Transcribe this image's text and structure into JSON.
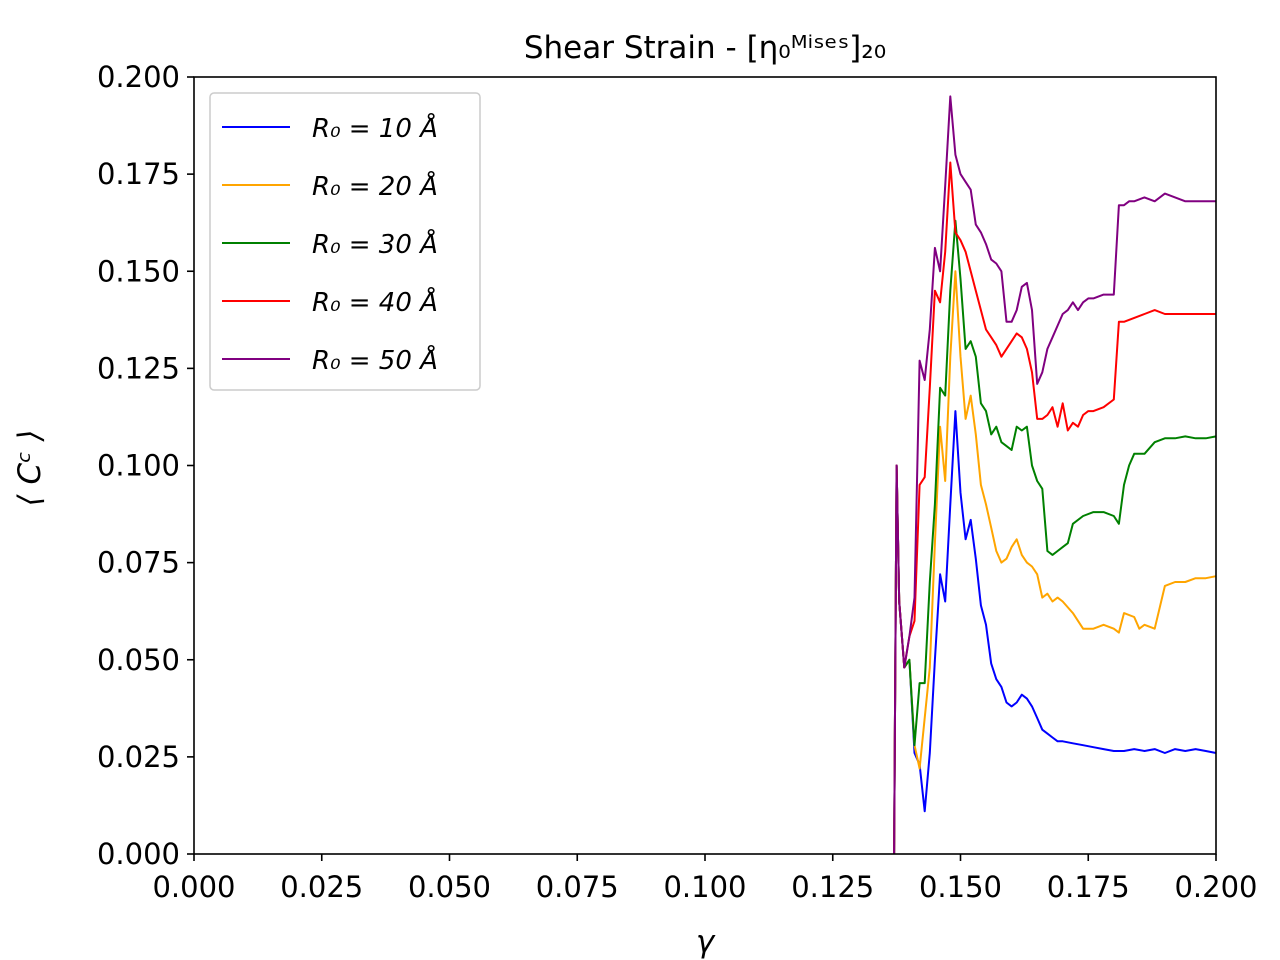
{
  "chart_data": {
    "type": "line",
    "title": "Shear Strain - [η₀ᴹⁱˢᵉˢ]₂₀",
    "xlabel": "γ",
    "ylabel": "⟨ Cᶜ ⟩",
    "xlim": [
      0.0,
      0.2
    ],
    "ylim": [
      0.0,
      0.2
    ],
    "xticks": [
      "0.000",
      "0.025",
      "0.050",
      "0.075",
      "0.100",
      "0.125",
      "0.150",
      "0.175",
      "0.200"
    ],
    "yticks": [
      "0.000",
      "0.025",
      "0.050",
      "0.075",
      "0.100",
      "0.125",
      "0.150",
      "0.175",
      "0.200"
    ],
    "legend_position": "top-left",
    "series": [
      {
        "name": "R₀ = 10 Å",
        "color": "#0000ff",
        "x": [
          0.137,
          0.1375,
          0.138,
          0.139,
          0.14,
          0.141,
          0.142,
          0.143,
          0.144,
          0.145,
          0.146,
          0.147,
          0.148,
          0.149,
          0.15,
          0.151,
          0.152,
          0.153,
          0.154,
          0.155,
          0.156,
          0.157,
          0.158,
          0.159,
          0.16,
          0.161,
          0.162,
          0.163,
          0.164,
          0.165,
          0.166,
          0.167,
          0.168,
          0.169,
          0.17,
          0.172,
          0.174,
          0.176,
          0.178,
          0.18,
          0.182,
          0.184,
          0.186,
          0.188,
          0.19,
          0.192,
          0.194,
          0.196,
          0.198,
          0.2
        ],
        "y": [
          0.0,
          0.1,
          0.065,
          0.048,
          0.05,
          0.026,
          0.023,
          0.011,
          0.026,
          0.05,
          0.072,
          0.065,
          0.09,
          0.114,
          0.093,
          0.081,
          0.086,
          0.076,
          0.064,
          0.059,
          0.049,
          0.045,
          0.043,
          0.039,
          0.038,
          0.039,
          0.041,
          0.04,
          0.038,
          0.035,
          0.032,
          0.031,
          0.03,
          0.029,
          0.029,
          0.0285,
          0.028,
          0.0275,
          0.027,
          0.0265,
          0.0265,
          0.027,
          0.0265,
          0.027,
          0.026,
          0.027,
          0.0265,
          0.027,
          0.0265,
          0.026
        ]
      },
      {
        "name": "R₀ = 20 Å",
        "color": "#ffa500",
        "x": [
          0.137,
          0.1375,
          0.138,
          0.139,
          0.14,
          0.141,
          0.142,
          0.143,
          0.144,
          0.145,
          0.146,
          0.147,
          0.148,
          0.149,
          0.15,
          0.151,
          0.152,
          0.153,
          0.154,
          0.155,
          0.156,
          0.157,
          0.158,
          0.159,
          0.16,
          0.161,
          0.162,
          0.163,
          0.164,
          0.165,
          0.166,
          0.167,
          0.168,
          0.169,
          0.17,
          0.172,
          0.174,
          0.176,
          0.178,
          0.18,
          0.181,
          0.182,
          0.184,
          0.185,
          0.186,
          0.188,
          0.19,
          0.192,
          0.194,
          0.196,
          0.198,
          0.2
        ],
        "y": [
          0.0,
          0.1,
          0.065,
          0.048,
          0.05,
          0.028,
          0.022,
          0.035,
          0.048,
          0.08,
          0.11,
          0.096,
          0.128,
          0.15,
          0.128,
          0.112,
          0.118,
          0.108,
          0.095,
          0.09,
          0.084,
          0.078,
          0.075,
          0.076,
          0.079,
          0.081,
          0.077,
          0.075,
          0.074,
          0.072,
          0.066,
          0.067,
          0.065,
          0.066,
          0.065,
          0.062,
          0.058,
          0.058,
          0.059,
          0.058,
          0.057,
          0.062,
          0.061,
          0.058,
          0.059,
          0.058,
          0.069,
          0.07,
          0.07,
          0.071,
          0.071,
          0.0715
        ]
      },
      {
        "name": "R₀ = 30 Å",
        "color": "#008000",
        "x": [
          0.137,
          0.1375,
          0.138,
          0.139,
          0.14,
          0.141,
          0.142,
          0.143,
          0.144,
          0.145,
          0.146,
          0.147,
          0.148,
          0.149,
          0.15,
          0.151,
          0.152,
          0.153,
          0.154,
          0.155,
          0.156,
          0.157,
          0.158,
          0.159,
          0.16,
          0.161,
          0.162,
          0.163,
          0.164,
          0.165,
          0.166,
          0.167,
          0.168,
          0.169,
          0.17,
          0.171,
          0.172,
          0.174,
          0.176,
          0.178,
          0.18,
          0.181,
          0.182,
          0.183,
          0.184,
          0.186,
          0.188,
          0.19,
          0.192,
          0.194,
          0.196,
          0.198,
          0.2
        ],
        "y": [
          0.0,
          0.1,
          0.065,
          0.048,
          0.05,
          0.028,
          0.044,
          0.044,
          0.07,
          0.09,
          0.12,
          0.118,
          0.145,
          0.163,
          0.148,
          0.13,
          0.132,
          0.128,
          0.116,
          0.114,
          0.108,
          0.11,
          0.106,
          0.105,
          0.104,
          0.11,
          0.109,
          0.11,
          0.1,
          0.096,
          0.094,
          0.078,
          0.077,
          0.078,
          0.079,
          0.08,
          0.085,
          0.087,
          0.088,
          0.088,
          0.087,
          0.085,
          0.095,
          0.1,
          0.103,
          0.103,
          0.106,
          0.107,
          0.107,
          0.1075,
          0.107,
          0.107,
          0.1075
        ]
      },
      {
        "name": "R₀ = 40 Å",
        "color": "#ff0000",
        "x": [
          0.137,
          0.1375,
          0.138,
          0.139,
          0.14,
          0.141,
          0.142,
          0.143,
          0.144,
          0.145,
          0.146,
          0.147,
          0.148,
          0.149,
          0.15,
          0.151,
          0.152,
          0.153,
          0.154,
          0.155,
          0.156,
          0.157,
          0.158,
          0.159,
          0.16,
          0.161,
          0.162,
          0.163,
          0.164,
          0.165,
          0.166,
          0.167,
          0.168,
          0.169,
          0.17,
          0.171,
          0.172,
          0.173,
          0.174,
          0.175,
          0.176,
          0.178,
          0.18,
          0.181,
          0.182,
          0.184,
          0.186,
          0.188,
          0.19,
          0.192,
          0.194,
          0.196,
          0.198,
          0.2
        ],
        "y": [
          0.0,
          0.1,
          0.065,
          0.048,
          0.056,
          0.06,
          0.095,
          0.097,
          0.12,
          0.145,
          0.142,
          0.155,
          0.178,
          0.16,
          0.158,
          0.155,
          0.15,
          0.145,
          0.14,
          0.135,
          0.133,
          0.131,
          0.128,
          0.13,
          0.132,
          0.134,
          0.133,
          0.13,
          0.124,
          0.112,
          0.112,
          0.113,
          0.115,
          0.11,
          0.116,
          0.109,
          0.111,
          0.11,
          0.113,
          0.114,
          0.114,
          0.115,
          0.117,
          0.137,
          0.137,
          0.138,
          0.139,
          0.14,
          0.139,
          0.139,
          0.139,
          0.139,
          0.139,
          0.139
        ]
      },
      {
        "name": "R₀ = 50 Å",
        "color": "#800080",
        "x": [
          0.137,
          0.1375,
          0.138,
          0.139,
          0.14,
          0.141,
          0.142,
          0.143,
          0.144,
          0.145,
          0.146,
          0.147,
          0.148,
          0.149,
          0.15,
          0.151,
          0.152,
          0.153,
          0.154,
          0.155,
          0.156,
          0.157,
          0.158,
          0.159,
          0.16,
          0.161,
          0.162,
          0.163,
          0.164,
          0.165,
          0.166,
          0.167,
          0.168,
          0.169,
          0.17,
          0.171,
          0.172,
          0.173,
          0.174,
          0.175,
          0.176,
          0.178,
          0.18,
          0.181,
          0.182,
          0.183,
          0.184,
          0.186,
          0.188,
          0.19,
          0.192,
          0.194,
          0.196,
          0.198,
          0.2
        ],
        "y": [
          0.0,
          0.1,
          0.065,
          0.048,
          0.056,
          0.066,
          0.127,
          0.122,
          0.135,
          0.156,
          0.15,
          0.172,
          0.195,
          0.18,
          0.175,
          0.173,
          0.171,
          0.162,
          0.16,
          0.157,
          0.153,
          0.152,
          0.15,
          0.137,
          0.137,
          0.14,
          0.146,
          0.147,
          0.14,
          0.121,
          0.124,
          0.13,
          0.133,
          0.136,
          0.139,
          0.14,
          0.142,
          0.14,
          0.142,
          0.143,
          0.143,
          0.144,
          0.144,
          0.167,
          0.167,
          0.168,
          0.168,
          0.169,
          0.168,
          0.17,
          0.169,
          0.168,
          0.168,
          0.168,
          0.168
        ]
      }
    ]
  }
}
